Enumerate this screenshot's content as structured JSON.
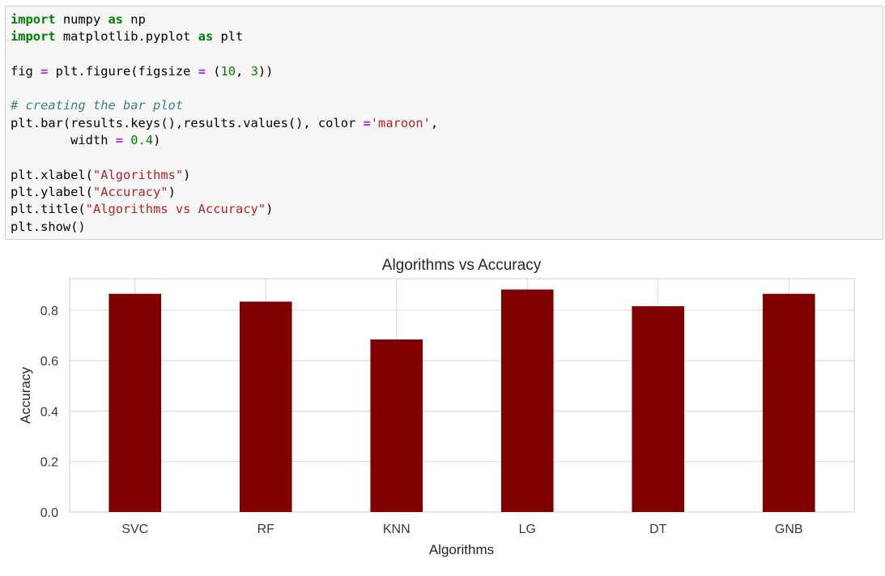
{
  "code_cell": {
    "lines": [
      [
        {
          "t": "import",
          "c": "kw"
        },
        {
          "t": " numpy ",
          "c": ""
        },
        {
          "t": "as",
          "c": "kw"
        },
        {
          "t": " np",
          "c": ""
        }
      ],
      [
        {
          "t": "import",
          "c": "kw"
        },
        {
          "t": " matplotlib.pyplot ",
          "c": ""
        },
        {
          "t": "as",
          "c": "kw"
        },
        {
          "t": " plt",
          "c": ""
        }
      ],
      [],
      [
        {
          "t": "fig ",
          "c": ""
        },
        {
          "t": "=",
          "c": "op"
        },
        {
          "t": " plt.figure(figsize ",
          "c": ""
        },
        {
          "t": "=",
          "c": "op"
        },
        {
          "t": " (",
          "c": ""
        },
        {
          "t": "10",
          "c": "num"
        },
        {
          "t": ", ",
          "c": ""
        },
        {
          "t": "3",
          "c": "num"
        },
        {
          "t": "))",
          "c": ""
        }
      ],
      [],
      [
        {
          "t": "# creating the bar plot",
          "c": "comment"
        }
      ],
      [
        {
          "t": "plt.bar(results.keys(),results.values(), color ",
          "c": ""
        },
        {
          "t": "=",
          "c": "op"
        },
        {
          "t": "'maroon'",
          "c": "str"
        },
        {
          "t": ",",
          "c": ""
        }
      ],
      [
        {
          "t": "        width ",
          "c": ""
        },
        {
          "t": "=",
          "c": "op"
        },
        {
          "t": " ",
          "c": ""
        },
        {
          "t": "0.4",
          "c": "num"
        },
        {
          "t": ")",
          "c": ""
        }
      ],
      [],
      [
        {
          "t": "plt.xlabel(",
          "c": ""
        },
        {
          "t": "\"Algorithms\"",
          "c": "str"
        },
        {
          "t": ")",
          "c": ""
        }
      ],
      [
        {
          "t": "plt.ylabel(",
          "c": ""
        },
        {
          "t": "\"Accuracy\"",
          "c": "str"
        },
        {
          "t": ")",
          "c": ""
        }
      ],
      [
        {
          "t": "plt.title(",
          "c": ""
        },
        {
          "t": "\"Algorithms vs Accuracy\"",
          "c": "str"
        },
        {
          "t": ")",
          "c": ""
        }
      ],
      [
        {
          "t": "plt.show()",
          "c": ""
        }
      ]
    ]
  },
  "colors": {
    "bar": "#800000",
    "keyword": "#008000",
    "operator": "#aa22ff",
    "string": "#ba2121",
    "comment": "#408080",
    "grid": "#d9d9d9",
    "axis_text": "#3a3a3a"
  },
  "chart_data": {
    "type": "bar",
    "title": "Algorithms vs Accuracy",
    "xlabel": "Algorithms",
    "ylabel": "Accuracy",
    "categories": [
      "SVC",
      "RF",
      "KNN",
      "LG",
      "DT",
      "GNB"
    ],
    "values": [
      0.865,
      0.834,
      0.684,
      0.882,
      0.816,
      0.865
    ],
    "ylim": [
      0,
      0.925
    ],
    "yticks": [
      0.0,
      0.2,
      0.4,
      0.6,
      0.8
    ],
    "ytick_labels": [
      "0.0",
      "0.2",
      "0.4",
      "0.6",
      "0.8"
    ],
    "bar_width": 0.4,
    "color": "maroon",
    "grid": true
  }
}
